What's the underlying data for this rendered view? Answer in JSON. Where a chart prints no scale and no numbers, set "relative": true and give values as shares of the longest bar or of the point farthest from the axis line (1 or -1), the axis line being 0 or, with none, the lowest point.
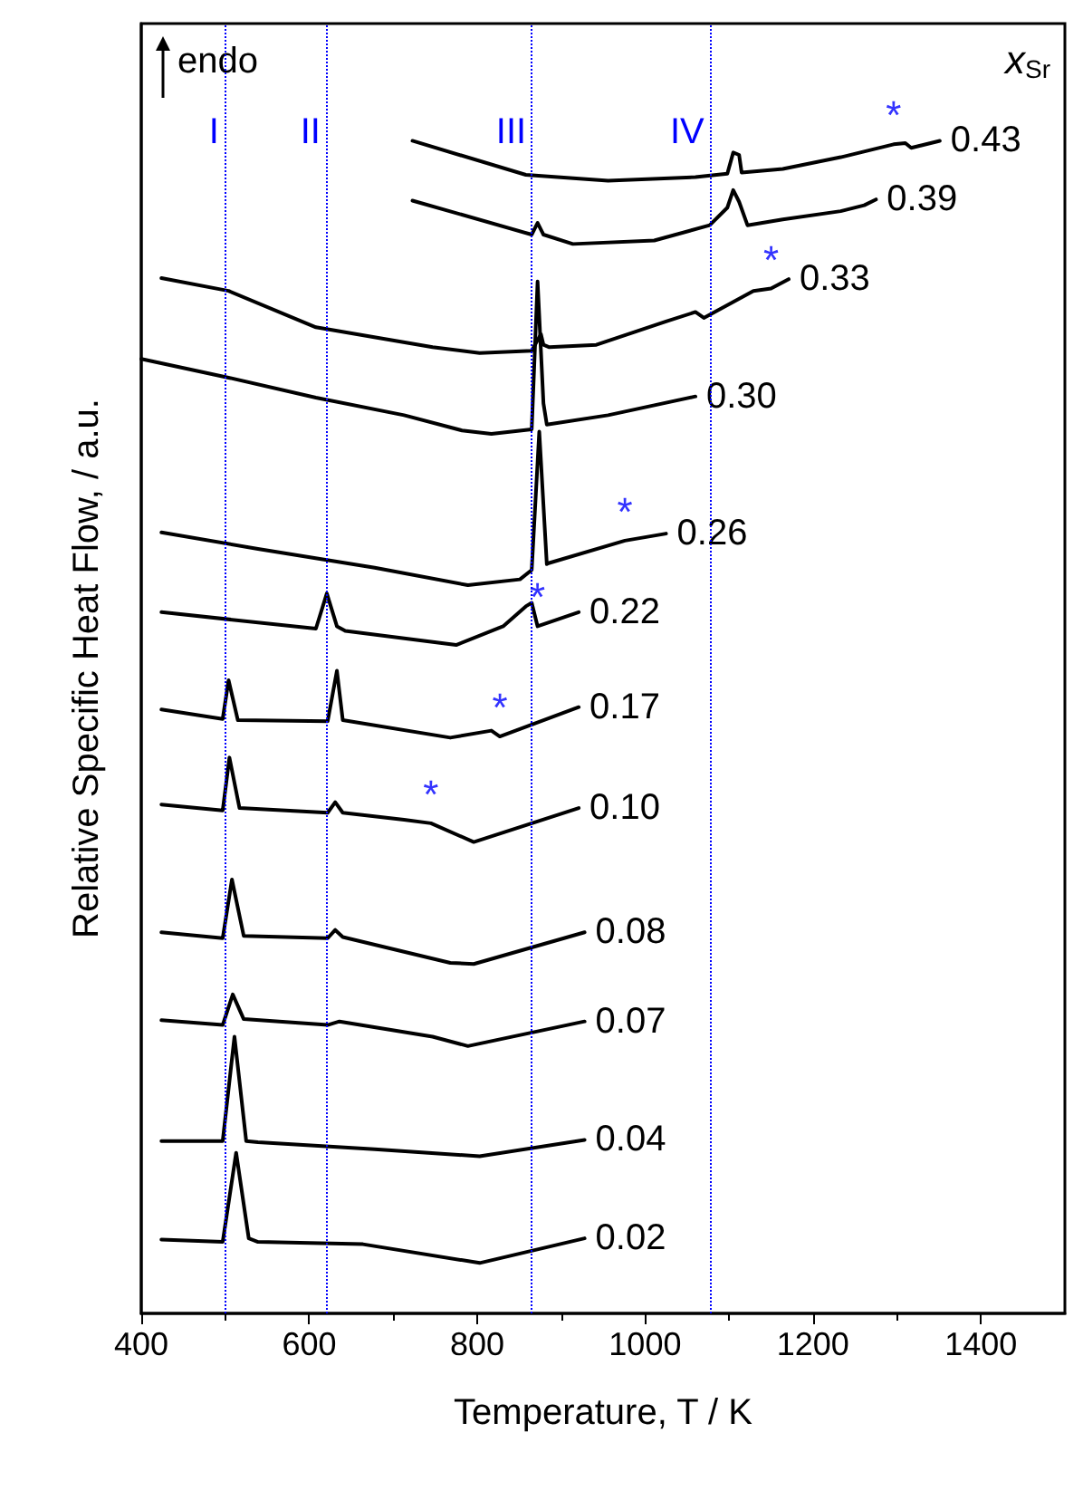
{
  "chart_data": {
    "type": "line",
    "xlabel": "Temperature, T / K",
    "ylabel": "Relative Specific Heat Flow, / a.u.",
    "legend_title": "x$_{Sr}$",
    "relative": true,
    "xlim": [
      400,
      1500
    ],
    "xticks": [
      400,
      600,
      800,
      1000,
      1200,
      1400
    ],
    "tick_labels": "x",
    "grid": false,
    "legend": false,
    "marker": "none",
    "line_style": "solid",
    "series": [
      {
        "name": "0.43",
        "color": "#000000",
        "x": [
          723,
          858,
          956,
          1060,
          1098,
          1105,
          1112,
          1115,
          1164,
          1233,
          1296,
          1310,
          1317,
          1351
        ],
        "values": [
          1.0,
          0.971,
          0.966,
          0.969,
          0.972,
          0.99,
          0.988,
          0.973,
          0.976,
          0.986,
          0.997,
          0.998,
          0.994,
          1.0
        ]
      },
      {
        "name": "0.39",
        "color": "#000000",
        "x": [
          723,
          865,
          872,
          879,
          914,
          1011,
          1077,
          1098,
          1105,
          1112,
          1122,
          1164,
          1233,
          1261,
          1275
        ],
        "values": [
          0.949,
          0.92,
          0.93,
          0.92,
          0.912,
          0.915,
          0.928,
          0.943,
          0.958,
          0.948,
          0.928,
          0.933,
          0.94,
          0.945,
          0.95
        ]
      },
      {
        "name": "0.33",
        "color": "#000000",
        "x": [
          424,
          504,
          608,
          747,
          803,
          865,
          872,
          876,
          879,
          886,
          942,
          1025,
          1060,
          1070,
          1129,
          1150,
          1171
        ],
        "values": [
          0.883,
          0.872,
          0.841,
          0.824,
          0.819,
          0.821,
          0.83,
          0.835,
          0.826,
          0.824,
          0.826,
          0.846,
          0.854,
          0.849,
          0.872,
          0.874,
          0.882
        ]
      },
      {
        "name": "0.30",
        "color": "#000000",
        "x": [
          400,
          504,
          608,
          713,
          782,
          817,
          865,
          872,
          879,
          883,
          956,
          1060
        ],
        "values": [
          0.814,
          0.798,
          0.781,
          0.766,
          0.753,
          0.75,
          0.754,
          0.88,
          0.776,
          0.758,
          0.766,
          0.782
        ]
      },
      {
        "name": "0.26",
        "color": "#000000",
        "x": [
          424,
          539,
          678,
          789,
          851,
          865,
          874,
          883,
          886,
          976,
          1025
        ],
        "values": [
          0.666,
          0.652,
          0.636,
          0.621,
          0.626,
          0.634,
          0.752,
          0.639,
          0.64,
          0.659,
          0.665
        ]
      },
      {
        "name": "0.22",
        "color": "#000000",
        "x": [
          424,
          608,
          621,
          633,
          643,
          775,
          831,
          858,
          865,
          872,
          921
        ],
        "values": [
          0.598,
          0.584,
          0.614,
          0.586,
          0.582,
          0.57,
          0.586,
          0.603,
          0.606,
          0.586,
          0.598
        ]
      },
      {
        "name": "0.17",
        "color": "#000000",
        "x": [
          424,
          497,
          504,
          515,
          622,
          633,
          640,
          768,
          817,
          827,
          921
        ],
        "values": [
          0.515,
          0.507,
          0.54,
          0.506,
          0.505,
          0.548,
          0.506,
          0.491,
          0.497,
          0.492,
          0.517
        ]
      },
      {
        "name": "0.10",
        "color": "#000000",
        "x": [
          424,
          497,
          505,
          517,
          622,
          631,
          640,
          713,
          745,
          796,
          921
        ],
        "values": [
          0.434,
          0.429,
          0.474,
          0.431,
          0.427,
          0.436,
          0.427,
          0.421,
          0.418,
          0.402,
          0.431
        ]
      },
      {
        "name": "0.08",
        "color": "#000000",
        "x": [
          424,
          497,
          508,
          522,
          622,
          631,
          640,
          768,
          796,
          928
        ],
        "values": [
          0.325,
          0.32,
          0.37,
          0.322,
          0.32,
          0.327,
          0.321,
          0.299,
          0.298,
          0.325
        ]
      },
      {
        "name": "0.07",
        "color": "#000000",
        "x": [
          424,
          497,
          509,
          522,
          622,
          636,
          747,
          789,
          928
        ],
        "values": [
          0.25,
          0.246,
          0.272,
          0.251,
          0.246,
          0.249,
          0.236,
          0.228,
          0.249
        ]
      },
      {
        "name": "0.04",
        "color": "#000000",
        "x": [
          424,
          497,
          511,
          525,
          539,
          678,
          803,
          928
        ],
        "values": [
          0.147,
          0.147,
          0.236,
          0.147,
          0.146,
          0.14,
          0.134,
          0.148
        ]
      },
      {
        "name": "0.02",
        "color": "#000000",
        "x": [
          424,
          497,
          513,
          528,
          539,
          664,
          803,
          928
        ],
        "values": [
          0.063,
          0.061,
          0.137,
          0.064,
          0.061,
          0.059,
          0.043,
          0.064
        ]
      }
    ],
    "ref_lines": [
      {
        "axis": "x",
        "value": 499,
        "color": "#0000ff",
        "line_style": "dotted",
        "label": "I"
      },
      {
        "axis": "x",
        "value": 620,
        "color": "#0000ff",
        "line_style": "dotted",
        "label": "II"
      },
      {
        "axis": "x",
        "value": 865,
        "color": "#0000ff",
        "line_style": "dotted",
        "label": "III"
      },
      {
        "axis": "x",
        "value": 1077,
        "color": "#0000ff",
        "line_style": "dotted",
        "label": "IV"
      }
    ],
    "annotations": [
      "endo",
      {
        "text": "*",
        "x": 1296,
        "y": 0.997
      },
      {
        "text": "*",
        "x": 1150,
        "y": 0.874
      },
      {
        "text": "*",
        "x": 976,
        "y": 0.659
      },
      {
        "text": "*",
        "x": 872,
        "y": 0.586
      },
      {
        "text": "*",
        "x": 827,
        "y": 0.492
      },
      {
        "text": "*",
        "x": 745,
        "y": 0.418
      }
    ]
  }
}
